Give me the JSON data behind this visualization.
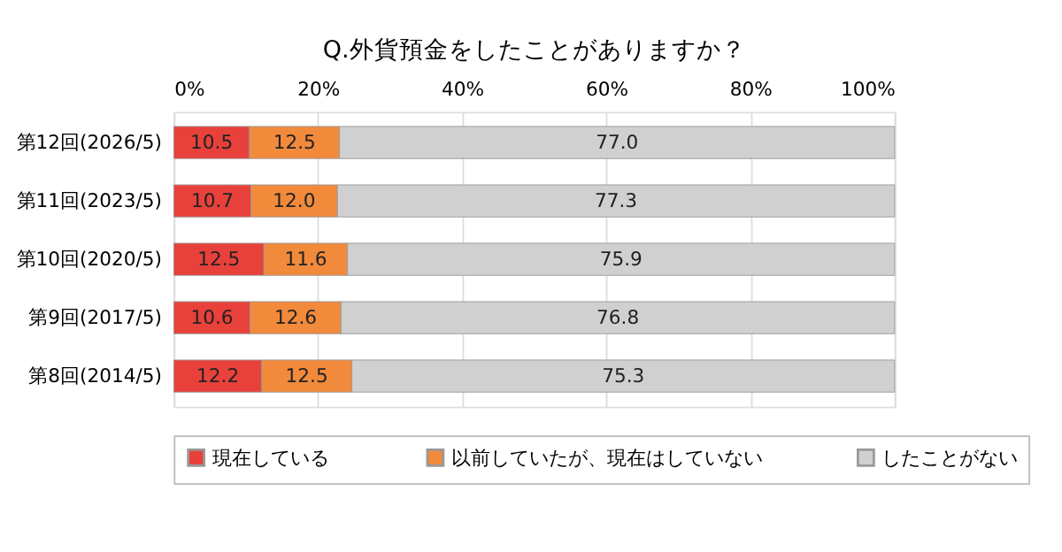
{
  "chart_data": {
    "type": "bar",
    "orientation": "horizontal",
    "stacked": true,
    "title": "Q.外貨預金をしたことがありますか？",
    "categories": [
      "第12回(2026/5)",
      "第11回(2023/5)",
      "第10回(2020/5)",
      "第9回(2017/5)",
      "第8回(2014/5)"
    ],
    "series": [
      {
        "name": "現在している",
        "color": "#e8413b",
        "values": [
          10.5,
          10.7,
          12.5,
          10.6,
          12.2
        ],
        "value_labels": [
          "10.5",
          "10.7",
          "12.5",
          "10.6",
          "12.2"
        ]
      },
      {
        "name": "以前していたが、現在はしていない",
        "color": "#f28a3c",
        "values": [
          12.5,
          12.0,
          11.6,
          12.6,
          12.5
        ],
        "value_labels": [
          "12.5",
          "12.0",
          "11.6",
          "12.6",
          "12.5"
        ]
      },
      {
        "name": "したことがない",
        "color": "#d0d0d0",
        "values": [
          77.0,
          77.3,
          75.9,
          76.8,
          75.3
        ],
        "value_labels": [
          "77.0",
          "77.3",
          "75.9",
          "76.8",
          "75.3"
        ]
      }
    ],
    "xlim": [
      0,
      100
    ],
    "xticks": [
      {
        "value": 0,
        "label": "0%"
      },
      {
        "value": 20,
        "label": "20%"
      },
      {
        "value": 40,
        "label": "40%"
      },
      {
        "value": 60,
        "label": "60%"
      },
      {
        "value": 80,
        "label": "80%"
      },
      {
        "value": 100,
        "label": "100%"
      }
    ],
    "grid": "x",
    "legend": "bottom"
  }
}
